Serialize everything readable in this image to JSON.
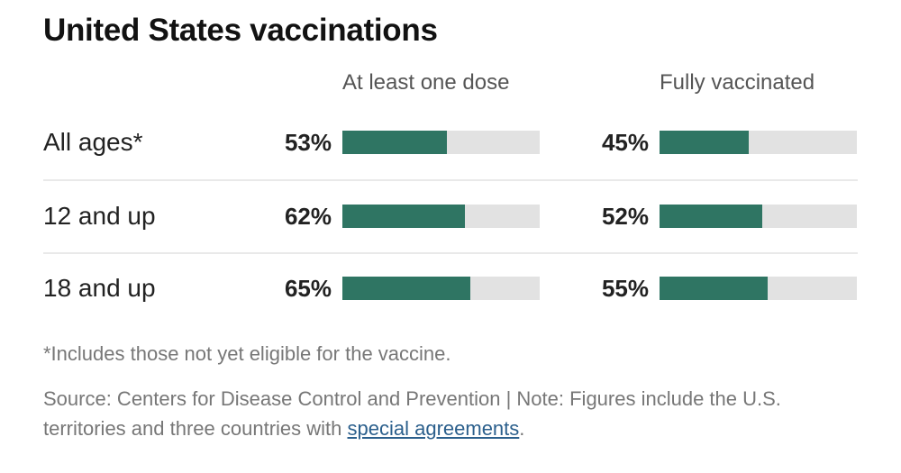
{
  "title": "United States vaccinations",
  "chart_data": {
    "type": "bar",
    "title": "United States vaccinations",
    "orientation": "horizontal",
    "categories": [
      "All ages*",
      "12 and up",
      "18 and up"
    ],
    "series": [
      {
        "name": "At least one dose",
        "values": [
          53,
          62,
          65
        ],
        "labels": [
          "53%",
          "62%",
          "65%"
        ]
      },
      {
        "name": "Fully vaccinated",
        "values": [
          45,
          52,
          55
        ],
        "labels": [
          "45%",
          "52%",
          "55%"
        ]
      }
    ],
    "xlim": [
      0,
      100
    ],
    "unit": "%",
    "colors": {
      "fill": "#2f7563",
      "track": "#e2e2e2"
    },
    "grid": false,
    "legend": "column-headers-top"
  },
  "footnote": "*Includes those not yet eligible for the vaccine.",
  "source": {
    "text_before": "Source: Centers for Disease Control and Prevention | Note: Figures include the U.S. territories and three countries with ",
    "link_text": "special agreements",
    "text_after": "."
  }
}
